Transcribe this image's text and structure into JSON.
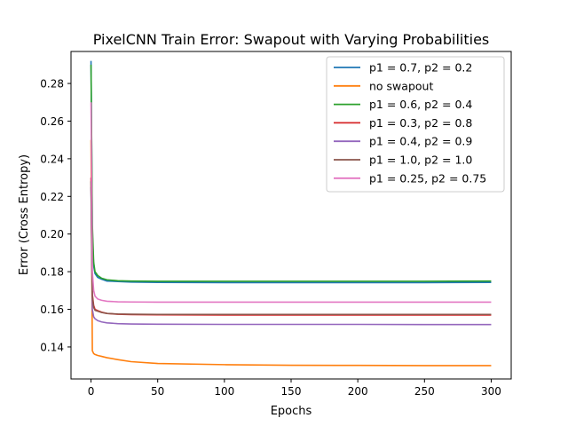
{
  "chart_data": {
    "type": "line",
    "title": "PixelCNN Train Error: Swapout with Varying Probabilities",
    "xlabel": "Epochs",
    "ylabel": "Error (Cross Entropy)",
    "xlim": [
      -15,
      315
    ],
    "ylim": [
      0.123,
      0.297
    ],
    "xticks": [
      0,
      50,
      100,
      150,
      200,
      250,
      300
    ],
    "yticks": [
      0.14,
      0.16,
      0.18,
      0.2,
      0.22,
      0.24,
      0.26,
      0.28
    ],
    "ytick_labels": [
      "0.14",
      "0.16",
      "0.18",
      "0.20",
      "0.22",
      "0.24",
      "0.26",
      "0.28"
    ],
    "grid": false,
    "legend_position": "top-right",
    "series": [
      {
        "name": "p1 = 0.7, p2 = 0.2",
        "color": "#1f77b4",
        "x": [
          0,
          1,
          2,
          3,
          5,
          8,
          12,
          20,
          30,
          50,
          100,
          150,
          200,
          250,
          300
        ],
        "y": [
          0.292,
          0.2,
          0.183,
          0.179,
          0.177,
          0.176,
          0.175,
          0.1748,
          0.1745,
          0.1743,
          0.1742,
          0.1742,
          0.1742,
          0.1742,
          0.1743
        ]
      },
      {
        "name": "no swapout",
        "color": "#ff7f0e",
        "x": [
          0,
          1,
          2,
          3,
          5,
          8,
          12,
          20,
          30,
          50,
          100,
          150,
          200,
          250,
          300
        ],
        "y": [
          0.25,
          0.138,
          0.1365,
          0.136,
          0.1355,
          0.135,
          0.1343,
          0.1333,
          0.1322,
          0.1312,
          0.1306,
          0.1303,
          0.1302,
          0.1301,
          0.1301
        ]
      },
      {
        "name": "p1 = 0.6, p2 = 0.4",
        "color": "#2ca02c",
        "x": [
          0,
          1,
          2,
          3,
          5,
          8,
          12,
          20,
          30,
          50,
          100,
          150,
          200,
          250,
          300
        ],
        "y": [
          0.29,
          0.205,
          0.185,
          0.18,
          0.178,
          0.1765,
          0.1757,
          0.1752,
          0.175,
          0.1749,
          0.1749,
          0.1749,
          0.1749,
          0.1749,
          0.175
        ]
      },
      {
        "name": "p1 = 0.3, p2 = 0.8",
        "color": "#d62728",
        "x": [
          0,
          1,
          2,
          3,
          5,
          8,
          12,
          20,
          30,
          50,
          100,
          150,
          200,
          250,
          300
        ],
        "y": [
          0.23,
          0.168,
          0.162,
          0.16,
          0.1593,
          0.1585,
          0.1578,
          0.1574,
          0.1572,
          0.1571,
          0.157,
          0.157,
          0.157,
          0.157,
          0.157
        ]
      },
      {
        "name": "p1 = 0.4, p2 = 0.9",
        "color": "#9467bd",
        "x": [
          0,
          1,
          2,
          3,
          5,
          8,
          12,
          20,
          30,
          50,
          100,
          150,
          200,
          250,
          300
        ],
        "y": [
          0.225,
          0.16,
          0.156,
          0.155,
          0.154,
          0.1533,
          0.1528,
          0.1524,
          0.1522,
          0.1521,
          0.152,
          0.152,
          0.152,
          0.1519,
          0.1519
        ]
      },
      {
        "name": "p1 = 1.0, p2 = 1.0",
        "color": "#8c564b",
        "x": [
          0,
          1,
          2,
          3,
          5,
          8,
          12,
          20,
          30,
          50,
          100,
          150,
          200,
          250,
          300
        ],
        "y": [
          0.228,
          0.167,
          0.161,
          0.1595,
          0.159,
          0.1583,
          0.1578,
          0.1575,
          0.1574,
          0.1573,
          0.1573,
          0.1573,
          0.1573,
          0.1573,
          0.1573
        ]
      },
      {
        "name": "p1 = 0.25, p2 = 0.75",
        "color": "#e377c2",
        "x": [
          0,
          1,
          2,
          3,
          5,
          8,
          12,
          20,
          30,
          50,
          100,
          150,
          200,
          250,
          300
        ],
        "y": [
          0.27,
          0.18,
          0.17,
          0.167,
          0.1655,
          0.1648,
          0.1643,
          0.164,
          0.1639,
          0.1638,
          0.1638,
          0.1638,
          0.1638,
          0.1638,
          0.1638
        ]
      }
    ]
  }
}
